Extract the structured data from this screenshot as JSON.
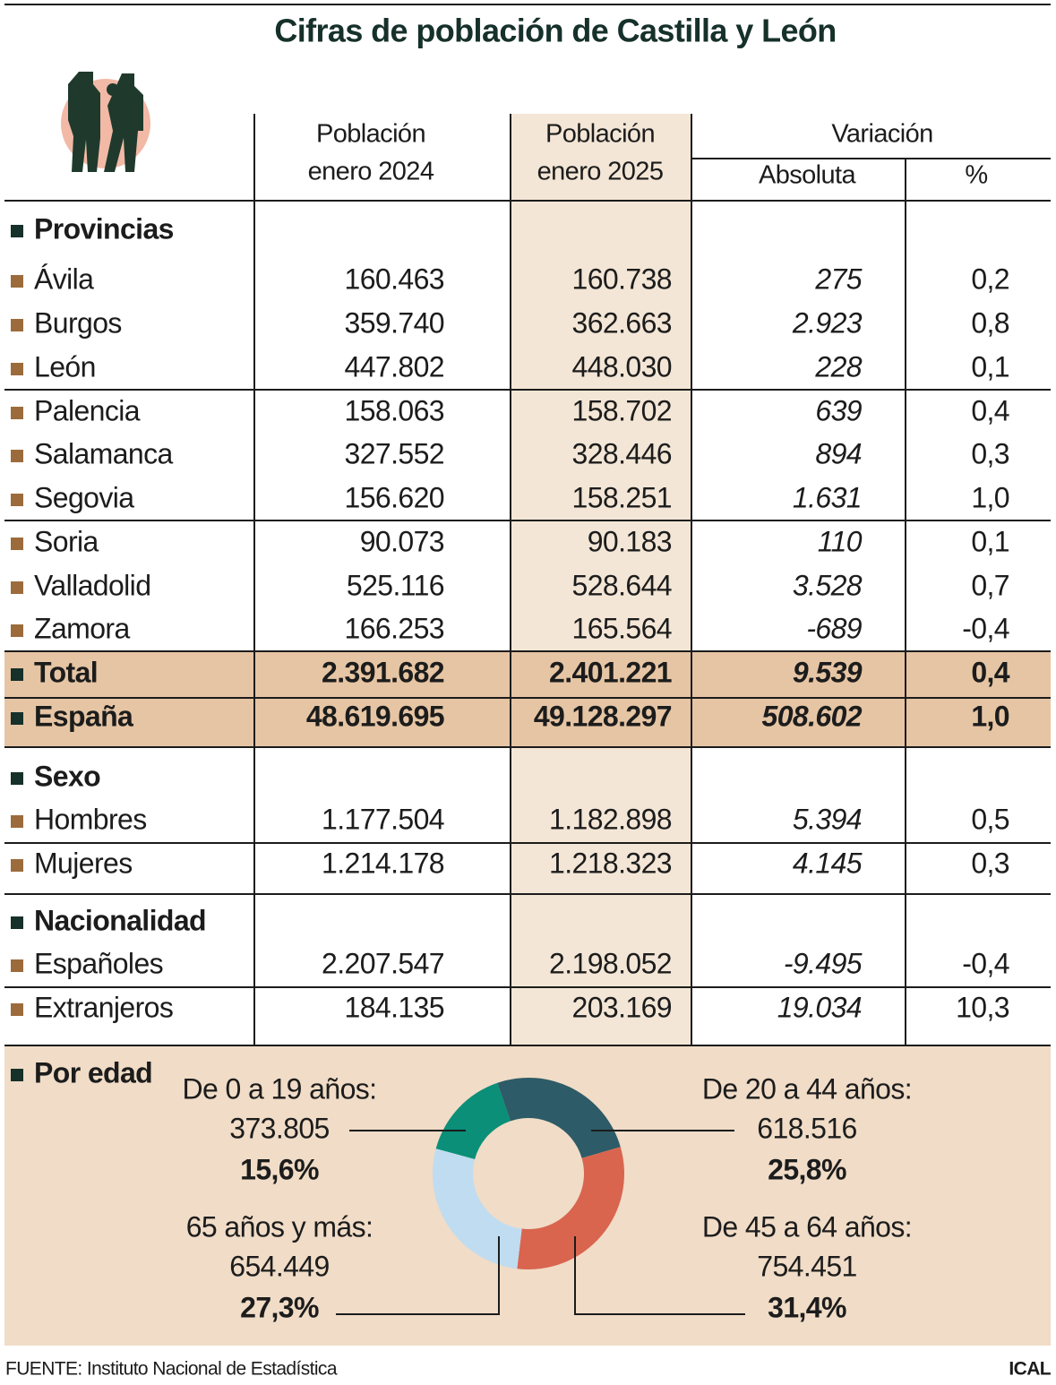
{
  "title": "Cifras de población de Castilla y León",
  "table": {
    "header": {
      "col1": [
        "Población",
        "enero 2024"
      ],
      "col2": [
        "Población",
        "enero 2025"
      ],
      "variation": "Variación",
      "absolute": "Absoluta",
      "percent": "%"
    },
    "sections": [
      {
        "heading": "Provincias",
        "rows": [
          [
            "Ávila",
            "160.463",
            "160.738",
            "275",
            "0,2"
          ],
          [
            "Burgos",
            "359.740",
            "362.663",
            "2.923",
            "0,8"
          ],
          [
            "León",
            "447.802",
            "448.030",
            "228",
            "0,1"
          ],
          [
            "Palencia",
            "158.063",
            "158.702",
            "639",
            "0,4"
          ],
          [
            "Salamanca",
            "327.552",
            "328.446",
            "894",
            "0,3"
          ],
          [
            "Segovia",
            "156.620",
            "158.251",
            "1.631",
            "1,0"
          ],
          [
            "Soria",
            "90.073",
            "90.183",
            "110",
            "0,1"
          ],
          [
            "Valladolid",
            "525.116",
            "528.644",
            "3.528",
            "0,7"
          ],
          [
            "Zamora",
            "166.253",
            "165.564",
            "-689",
            "-0,4"
          ]
        ]
      },
      {
        "heading": "Sexo",
        "rows": [
          [
            "Hombres",
            "1.177.504",
            "1.182.898",
            "5.394",
            "0,5"
          ],
          [
            "Mujeres",
            "1.214.178",
            "1.218.323",
            "4.145",
            "0,3"
          ]
        ]
      },
      {
        "heading": "Nacionalidad",
        "rows": [
          [
            "Españoles",
            "2.207.547",
            "2.198.052",
            "-9.495",
            "-0,4"
          ],
          [
            "Extranjeros",
            "184.135",
            "203.169",
            "19.034",
            "10,3"
          ]
        ]
      }
    ],
    "totals": [
      [
        "Total",
        "2.391.682",
        "2.401.221",
        "9.539",
        "0,4"
      ],
      [
        "España",
        "48.619.695",
        "49.128.297",
        "508.602",
        "1,0"
      ]
    ]
  },
  "chart_data": {
    "type": "pie",
    "title": "Por edad",
    "categories": [
      "De 0 a 19 años:",
      "De 20 a 44 años:",
      "De 45 a 64 años:",
      "65 años y más:"
    ],
    "counts": [
      "373.805",
      "618.516",
      "754.451",
      "654.449"
    ],
    "values": [
      15.6,
      25.8,
      31.4,
      27.3
    ],
    "value_labels": [
      "15,6%",
      "25,8%",
      "31,4%",
      "27,3%"
    ],
    "colors": [
      "#0b8f78",
      "#2d5b67",
      "#d9654f",
      "#c0dcf0"
    ]
  },
  "footer": {
    "source": "FUENTE: Instituto Nacional de Estadística",
    "credit": "ICAL"
  }
}
